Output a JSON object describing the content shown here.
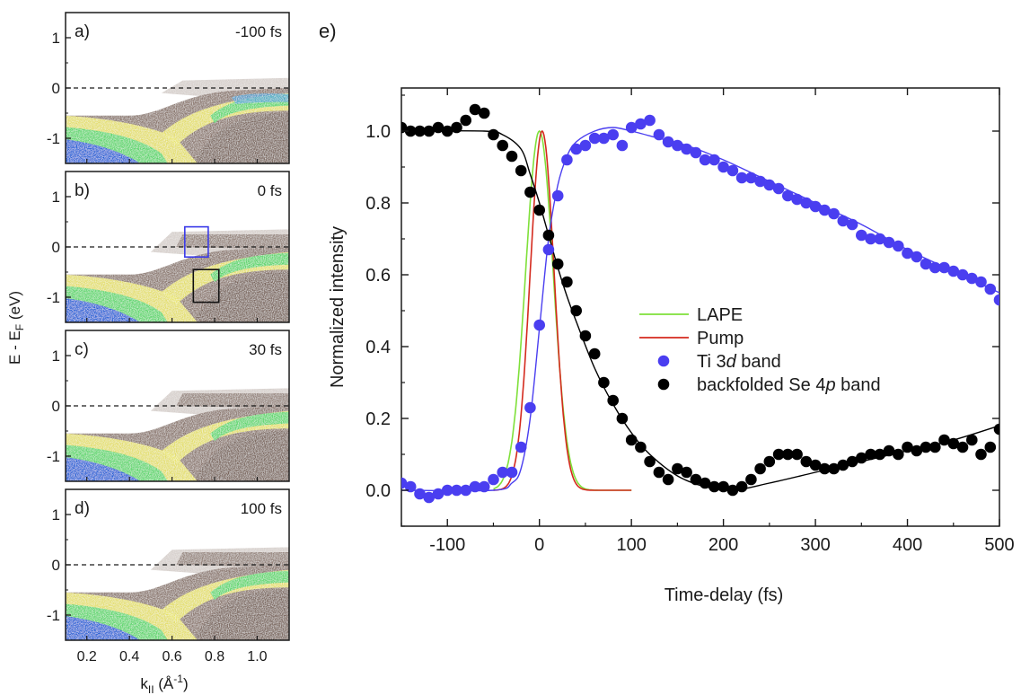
{
  "arpes_panels": {
    "ylabel_main": "E - E",
    "ylabel_sub": "F",
    "ylabel_unit": " (eV)",
    "xlabel_main": "k",
    "xlabel_sub": "II",
    "xlabel_unit_open": " (Å",
    "xlabel_sup": "-1",
    "xlabel_close": ")",
    "yticks": [
      "1",
      "0",
      "-1"
    ],
    "xticks": [
      "0.2",
      "0.4",
      "0.6",
      "0.8",
      "1.0"
    ],
    "panels": [
      {
        "letter": "a)",
        "delay": "-100 fs",
        "scheme": "before"
      },
      {
        "letter": "b)",
        "delay": "0 fs",
        "scheme": "zero",
        "boxes": true
      },
      {
        "letter": "c)",
        "delay": "30 fs",
        "scheme": "mid"
      },
      {
        "letter": "d)",
        "delay": "100 fs",
        "scheme": "late"
      }
    ],
    "colors": {
      "noise": "#bdb0aa",
      "brown": "#8a766d",
      "yellow": "#e8e46a",
      "green": "#5cd66c",
      "blue": "#1d5fd6",
      "box_blue": "#3a3ae8",
      "box_black": "#111111"
    }
  },
  "chart_data": {
    "type": "scatter",
    "panel_letter": "e)",
    "xlabel": "Time-delay (fs)",
    "ylabel": "Normalized intensity",
    "xlim": [
      -150,
      500
    ],
    "ylim": [
      -0.1,
      1.12
    ],
    "xticks": [
      -100,
      0,
      100,
      200,
      300,
      400,
      500
    ],
    "xtick_labels": [
      "-100",
      "0",
      "100",
      "200",
      "300",
      "400",
      "500"
    ],
    "yticks": [
      0.0,
      0.2,
      0.4,
      0.6,
      0.8,
      1.0
    ],
    "ytick_labels": [
      "0.0",
      "0.2",
      "0.4",
      "0.6",
      "0.8",
      "1.0"
    ],
    "grid": false,
    "legend_placement": "center-right",
    "legend": [
      {
        "key": "lape",
        "label": "LAPE",
        "kind": "line",
        "color": "#7fe03a"
      },
      {
        "key": "pump",
        "label": "Pump",
        "kind": "line",
        "color": "#d42a1e"
      },
      {
        "key": "ti",
        "label_pre": "Ti 3",
        "label_it": "d",
        "label_post": " band",
        "kind": "marker",
        "color": "#4a3ef0"
      },
      {
        "key": "se",
        "label_pre": "backfolded Se 4",
        "label_it": "p",
        "label_post": " band",
        "kind": "marker",
        "color": "#000000"
      }
    ],
    "series": [
      {
        "name": "Ti 3d band",
        "kind": "points",
        "color": "#4a3ef0",
        "x": [
          -150,
          -140,
          -130,
          -120,
          -110,
          -100,
          -90,
          -80,
          -70,
          -60,
          -50,
          -40,
          -30,
          -20,
          -10,
          0,
          10,
          20,
          30,
          40,
          50,
          60,
          70,
          80,
          90,
          100,
          110,
          120,
          130,
          140,
          150,
          160,
          170,
          180,
          190,
          200,
          210,
          220,
          230,
          240,
          250,
          260,
          270,
          280,
          290,
          300,
          310,
          320,
          330,
          340,
          350,
          360,
          370,
          380,
          390,
          400,
          410,
          420,
          430,
          440,
          450,
          460,
          470,
          480,
          490,
          500
        ],
        "y": [
          0.02,
          0.01,
          -0.01,
          -0.02,
          -0.01,
          0.0,
          0.0,
          0.0,
          0.01,
          0.01,
          0.03,
          0.05,
          0.05,
          0.12,
          0.23,
          0.46,
          0.67,
          0.82,
          0.92,
          0.95,
          0.96,
          0.98,
          0.98,
          0.99,
          0.96,
          1.01,
          1.02,
          1.03,
          0.99,
          0.97,
          0.96,
          0.95,
          0.94,
          0.92,
          0.92,
          0.9,
          0.89,
          0.87,
          0.87,
          0.86,
          0.85,
          0.84,
          0.82,
          0.81,
          0.8,
          0.79,
          0.78,
          0.77,
          0.75,
          0.74,
          0.71,
          0.7,
          0.7,
          0.69,
          0.68,
          0.66,
          0.65,
          0.63,
          0.62,
          0.62,
          0.61,
          0.6,
          0.59,
          0.58,
          0.56,
          0.53
        ]
      },
      {
        "name": "backfolded Se 4p band",
        "kind": "points",
        "color": "#000000",
        "x": [
          -150,
          -140,
          -130,
          -120,
          -110,
          -100,
          -90,
          -80,
          -70,
          -60,
          -50,
          -40,
          -30,
          -20,
          -10,
          0,
          10,
          20,
          30,
          40,
          50,
          60,
          70,
          80,
          90,
          100,
          110,
          120,
          130,
          140,
          150,
          160,
          170,
          180,
          190,
          200,
          210,
          220,
          230,
          240,
          250,
          260,
          270,
          280,
          290,
          300,
          310,
          320,
          330,
          340,
          350,
          360,
          370,
          380,
          390,
          400,
          410,
          420,
          430,
          440,
          450,
          460,
          470,
          480,
          490,
          500
        ],
        "y": [
          1.01,
          1.0,
          1.0,
          1.0,
          1.01,
          1.0,
          1.01,
          1.03,
          1.06,
          1.05,
          0.99,
          0.96,
          0.93,
          0.89,
          0.83,
          0.78,
          0.71,
          0.63,
          0.58,
          0.5,
          0.43,
          0.38,
          0.3,
          0.25,
          0.2,
          0.14,
          0.12,
          0.08,
          0.05,
          0.03,
          0.06,
          0.05,
          0.03,
          0.02,
          0.01,
          0.01,
          0.0,
          0.01,
          0.03,
          0.06,
          0.08,
          0.1,
          0.1,
          0.1,
          0.08,
          0.07,
          0.06,
          0.06,
          0.07,
          0.08,
          0.09,
          0.1,
          0.1,
          0.11,
          0.1,
          0.12,
          0.11,
          0.12,
          0.12,
          0.14,
          0.13,
          0.12,
          0.14,
          0.1,
          0.12,
          0.17
        ]
      },
      {
        "name": "Ti 3d fit",
        "kind": "line",
        "color": "#4a3ef0",
        "x": [
          -150,
          -50,
          -30,
          -20,
          -10,
          0,
          10,
          20,
          30,
          40,
          60,
          80,
          100,
          130,
          160,
          200,
          250,
          300,
          350,
          400,
          450,
          500
        ],
        "y": [
          0.0,
          0.0,
          0.02,
          0.06,
          0.2,
          0.45,
          0.7,
          0.85,
          0.93,
          0.97,
          1.0,
          1.01,
          1.0,
          0.98,
          0.96,
          0.92,
          0.86,
          0.8,
          0.74,
          0.67,
          0.61,
          0.55
        ]
      },
      {
        "name": "Se 4p fit",
        "kind": "line",
        "color": "#000000",
        "x": [
          -150,
          -60,
          -40,
          -20,
          -10,
          0,
          10,
          20,
          30,
          40,
          60,
          80,
          100,
          120,
          150,
          180,
          210,
          250,
          300,
          350,
          400,
          450,
          500
        ],
        "y": [
          1.0,
          1.0,
          0.99,
          0.95,
          0.88,
          0.8,
          0.71,
          0.62,
          0.54,
          0.47,
          0.34,
          0.24,
          0.16,
          0.1,
          0.04,
          0.01,
          0.0,
          0.02,
          0.05,
          0.08,
          0.11,
          0.14,
          0.18
        ]
      },
      {
        "name": "LAPE",
        "kind": "gaussian",
        "color": "#7fe03a",
        "center": 0,
        "sigma": 15,
        "amplitude": 1.0,
        "x_range": [
          -50,
          100
        ]
      },
      {
        "name": "Pump",
        "kind": "gaussian",
        "color": "#d42a1e",
        "center": 3,
        "sigma": 13,
        "amplitude": 1.0,
        "x_range": [
          -50,
          100
        ]
      }
    ]
  }
}
